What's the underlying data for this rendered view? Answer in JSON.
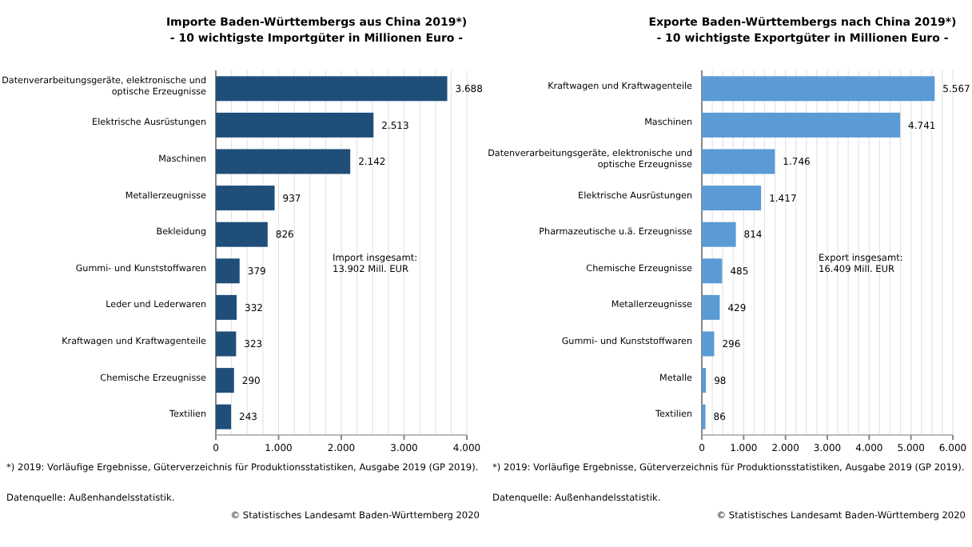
{
  "chart_data": [
    {
      "type": "bar",
      "orientation": "horizontal",
      "title": "Importe Baden-Württembergs aus China 2019*)",
      "subtitle": "- 10 wichtigste Importgüter in Millionen Euro -",
      "categories": [
        "Datenverarbeitungsgeräte, elektronische und optische Erzeugnisse",
        "Elektrische Ausrüstungen",
        "Maschinen",
        "Metallerzeugnisse",
        "Bekleidung",
        "Gummi- und Kunststoffwaren",
        "Leder und Lederwaren",
        "Kraftwagen und Kraftwagenteile",
        "Chemische Erzeugnisse",
        "Textilien"
      ],
      "values": [
        3688,
        2513,
        2142,
        937,
        826,
        379,
        332,
        323,
        290,
        243
      ],
      "value_labels": [
        "3.688",
        "2.513",
        "2.142",
        "937",
        "826",
        "379",
        "332",
        "323",
        "290",
        "243"
      ],
      "color": "#1f4e79",
      "xlim": [
        0,
        4000
      ],
      "xticks": [
        0,
        {
          "value": 1000,
          "label": "1.000"
        },
        {
          "value": 2000,
          "label": "2.000"
        },
        {
          "value": 3000,
          "label": "3.000"
        },
        {
          "value": 4000,
          "label": "4.000"
        }
      ],
      "grid": "x",
      "annotations": [
        "Import insgesamt:\n13.902 Mill. EUR",
        "*) 2019: Vorläufige Ergebnisse, Güterverzeichnis für Produktionsstatistiken, Ausgabe 2019 (GP 2019).",
        "Datenquelle: Außenhandelsstatistik.",
        "© Statistisches Landesamt Baden-Württemberg 2020"
      ]
    },
    {
      "type": "bar",
      "orientation": "horizontal",
      "title": "Exporte Baden-Württembergs nach China 2019*)",
      "subtitle": "- 10 wichtigste Exportgüter in Millionen Euro -",
      "categories": [
        "Kraftwagen und Kraftwagenteile",
        "Maschinen",
        "Datenverarbeitungsgeräte, elektronische und optische Erzeugnisse",
        "Elektrische Ausrüstungen",
        "Pharmazeutische u.ä. Erzeugnisse",
        "Chemische Erzeugnisse",
        "Metallerzeugnisse",
        "Gummi- und Kunststoffwaren",
        "Metalle",
        "Textilien"
      ],
      "values": [
        5567,
        4741,
        1746,
        1417,
        814,
        485,
        429,
        296,
        98,
        86
      ],
      "value_labels": [
        "5.567",
        "4.741",
        "1.746",
        "1.417",
        "814",
        "485",
        "429",
        "296",
        "98",
        "86"
      ],
      "color": "#5b9bd5",
      "xlim": [
        0,
        6000
      ],
      "xticks": [
        0,
        {
          "value": 1000,
          "label": "1.000"
        },
        {
          "value": 2000,
          "label": "2.000"
        },
        {
          "value": 3000,
          "label": "3.000"
        },
        {
          "value": 4000,
          "label": "4.000"
        },
        {
          "value": 5000,
          "label": "5.000"
        },
        {
          "value": 6000,
          "label": "6.000"
        }
      ],
      "grid": "x",
      "annotations": [
        "Export insgesamt:\n16.409 Mill. EUR",
        "*) 2019: Vorläufige Ergebnisse, Güterverzeichnis für Produktionsstatistiken, Ausgabe 2019 (GP 2019).",
        "Datenquelle: Außenhandelsstatistik.",
        "© Statistisches Landesamt Baden-Württemberg 2020"
      ]
    }
  ]
}
